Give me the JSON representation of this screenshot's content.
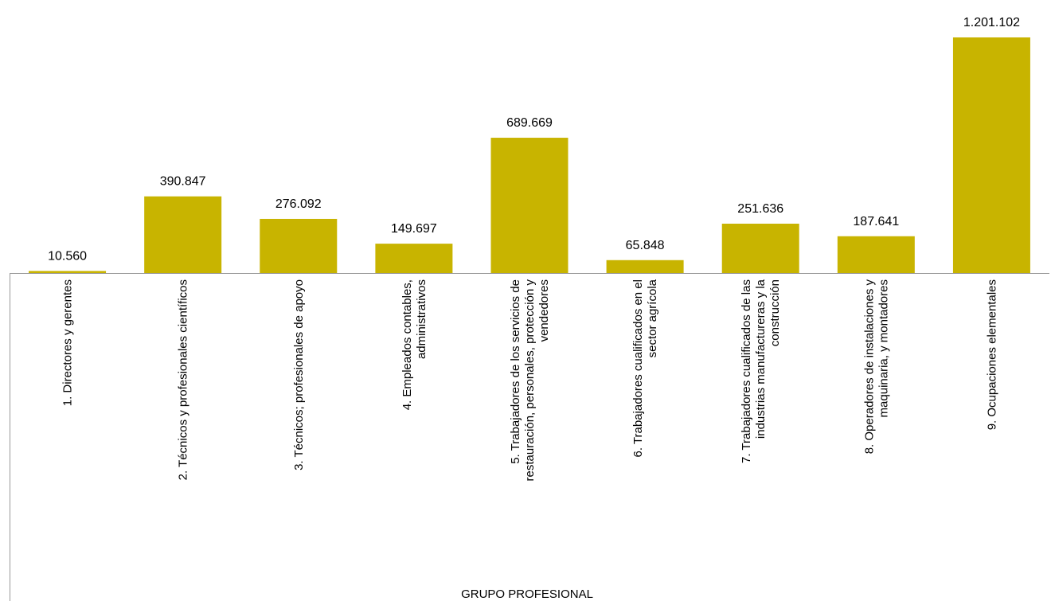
{
  "chart_data": {
    "type": "bar",
    "title": "",
    "xlabel": "GRUPO PROFESIONAL",
    "ylabel": "",
    "categories": [
      "1. Directores y gerentes",
      "2. Técnicos y profesionales científicos",
      "3. Técnicos; profesionales de apoyo",
      "4. Empleados contables, administrativos",
      "5. Trabajadores de los servicios de restauración, personales, protección y vendedores",
      "6. Trabajadores cualificados en el sector agrícola",
      "7. Trabajadores cualificados de las industrias manufactureras y la construcción",
      "8. Operadores de instalaciones y maquinaria, y montadores",
      "9. Ocupaciones elementales"
    ],
    "category_lines": [
      [
        "1. Directores y gerentes"
      ],
      [
        "2. Técnicos y profesionales científicos"
      ],
      [
        "3. Técnicos; profesionales de apoyo"
      ],
      [
        "4. Empleados contables,",
        "administrativos"
      ],
      [
        "5. Trabajadores de los servicios de",
        "restauración, personales, protección y",
        "vendedores"
      ],
      [
        "6. Trabajadores cualificados en el",
        "sector agrícola"
      ],
      [
        "7. Trabajadores cualificados de las",
        "industrias manufactureras y la",
        "construcción"
      ],
      [
        "8. Operadores de instalaciones y",
        "maquinaria, y montadores"
      ],
      [
        "9. Ocupaciones elementales"
      ]
    ],
    "values": [
      10560,
      390847,
      276092,
      149697,
      689669,
      65848,
      251636,
      187641,
      1201102
    ],
    "data_labels": [
      "10.560",
      "390.847",
      "276.092",
      "149.697",
      "689.669",
      "65.848",
      "251.636",
      "187.641",
      "1.201.102"
    ],
    "ylim": [
      0,
      1201102
    ],
    "grid": false,
    "legend": "none",
    "bar_color": "#C8B400",
    "axis_color": "#999999"
  }
}
